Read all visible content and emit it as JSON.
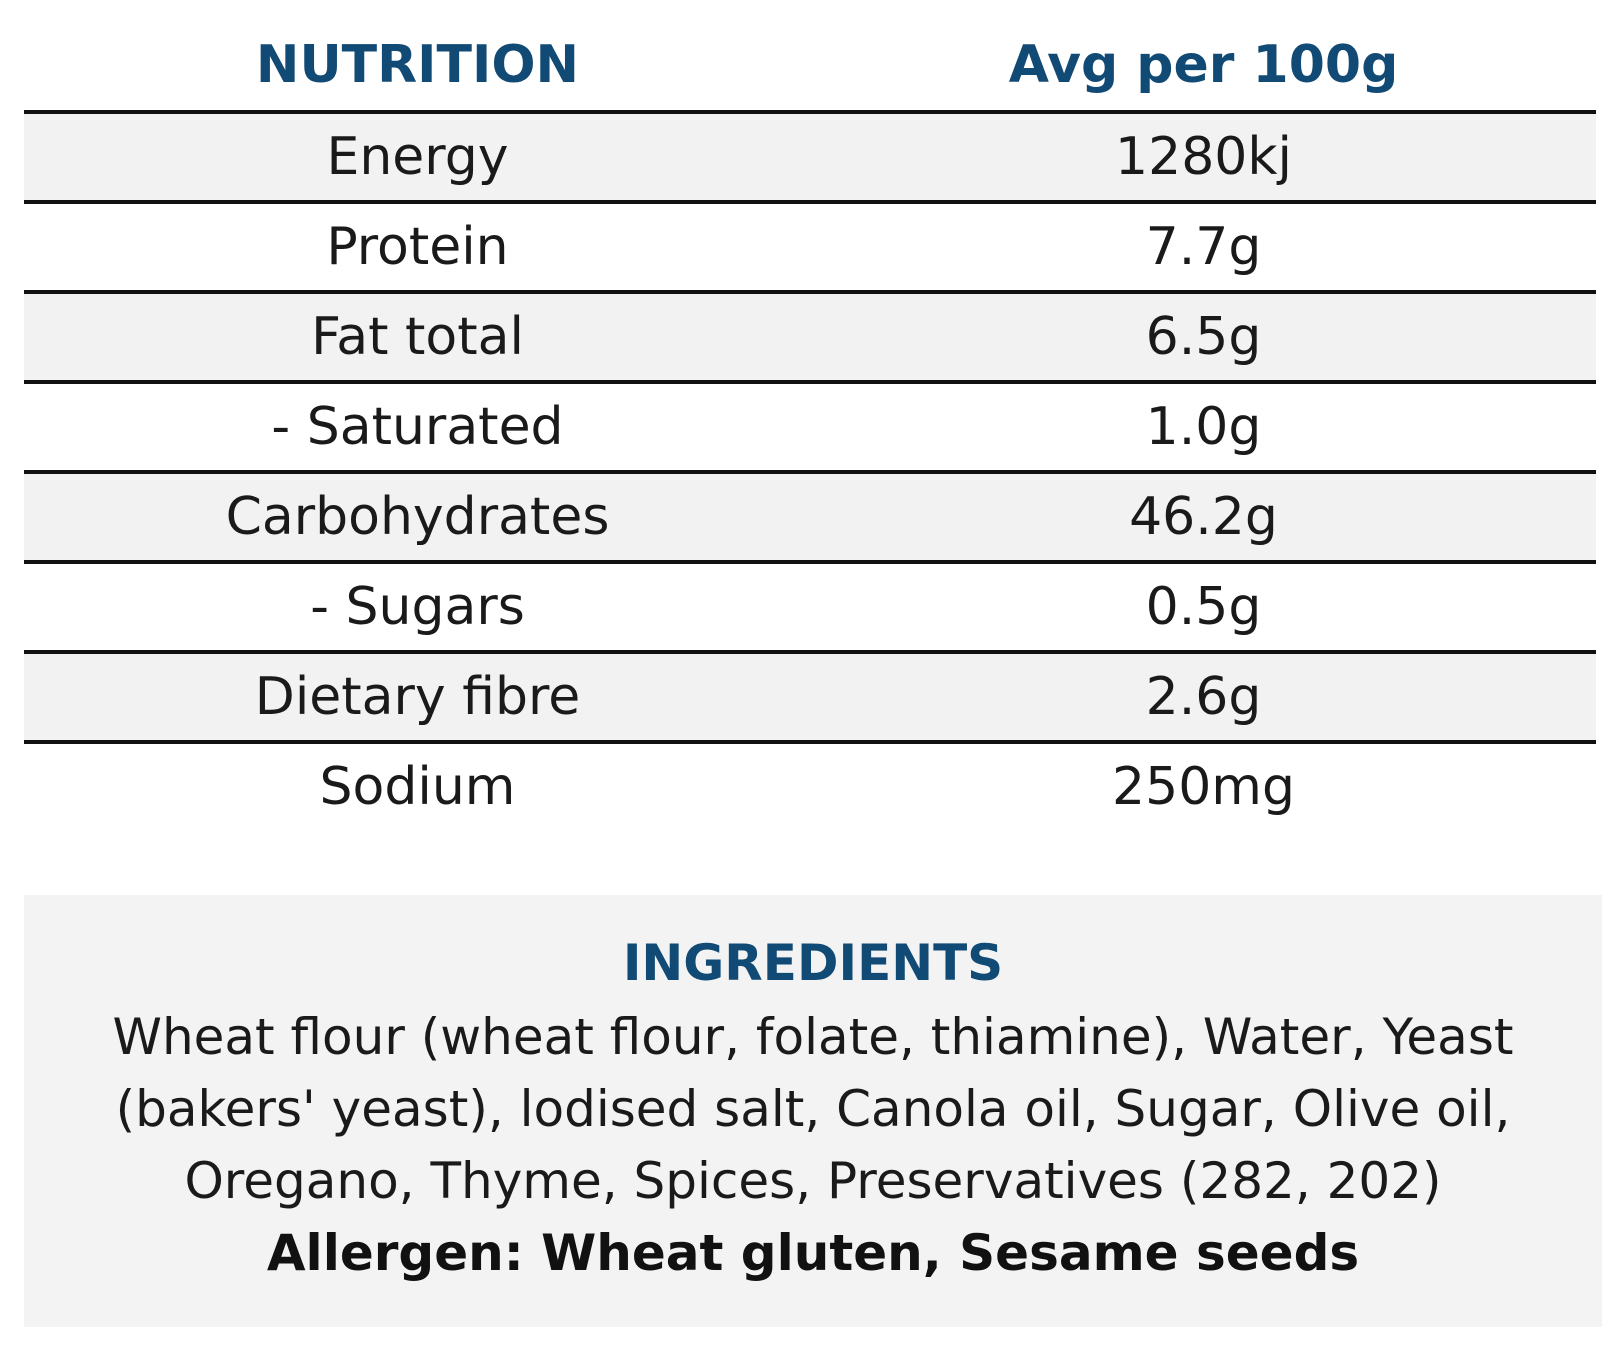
{
  "header": {
    "nutrient_label": "NUTRITION",
    "value_label": "Avg per 100g"
  },
  "rows": [
    {
      "name": "Energy",
      "value": "1280kj"
    },
    {
      "name": "Protein",
      "value": "7.7g"
    },
    {
      "name": "Fat total",
      "value": "6.5g"
    },
    {
      "name": "- Saturated",
      "value": "1.0g"
    },
    {
      "name": "Carbohydrates",
      "value": "46.2g"
    },
    {
      "name": "- Sugars",
      "value": "0.5g"
    },
    {
      "name": "Dietary fibre",
      "value": "2.6g"
    },
    {
      "name": "Sodium",
      "value": "250mg"
    }
  ],
  "ingredients": {
    "title": "INGREDIENTS",
    "line1": "Wheat flour (wheat flour, folate, thiamine), Water, Yeast",
    "line2": "(bakers' yeast), lodised salt, Canola oil, Sugar, Olive oil,",
    "line3": "Oregano, Thyme, Spices, Preservatives (282, 202)",
    "allergen": "Allergen: Wheat gluten, Sesame seeds"
  },
  "colors": {
    "heading": "#114a74",
    "shaded_row": "#f2f2f2",
    "ingredients_bg": "#f3f3f3",
    "rule": "#111111"
  }
}
